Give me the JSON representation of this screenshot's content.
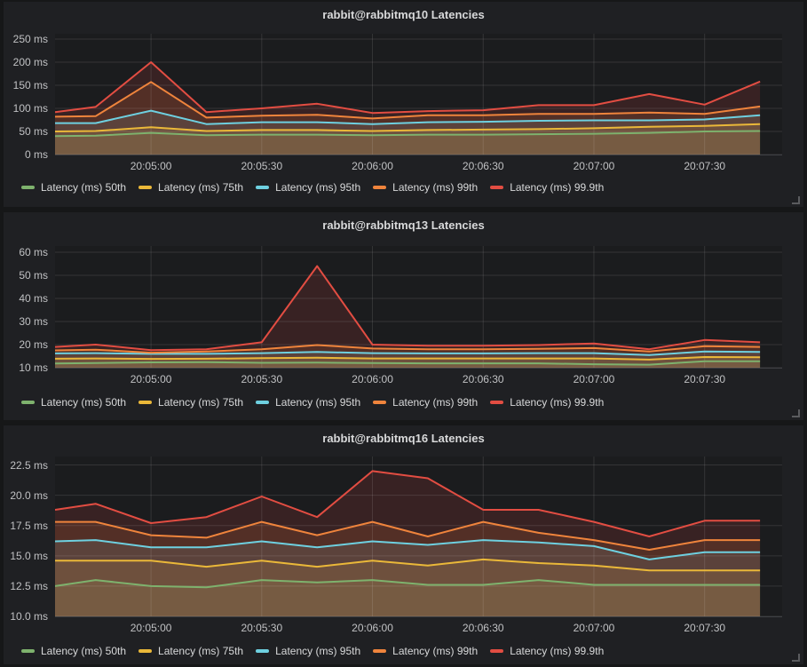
{
  "panels": [
    {
      "title": "rabbit@rabbitmq10 Latencies"
    },
    {
      "title": "rabbit@rabbitmq13 Latencies"
    },
    {
      "title": "rabbit@rabbitmq16 Latencies"
    }
  ],
  "legend_labels": [
    "Latency (ms) 50th",
    "Latency (ms) 75th",
    "Latency (ms) 95th",
    "Latency (ms) 99th",
    "Latency (ms) 99.9th"
  ],
  "palette": {
    "green": "#7eb26d",
    "yellow": "#eab839",
    "cyan": "#6ed0e0",
    "orange": "#ef843c",
    "red": "#e24d42"
  },
  "chart_data": [
    {
      "type": "area",
      "title": "rabbit@rabbitmq10 Latencies",
      "grid": true,
      "legend_position": "bottom",
      "xlim": [
        "20:04:34",
        "20:07:51"
      ],
      "xticks": [
        {
          "time": "20:05:00",
          "label": "20:05:00"
        },
        {
          "time": "20:05:30",
          "label": "20:05:30"
        },
        {
          "time": "20:06:00",
          "label": "20:06:00"
        },
        {
          "time": "20:06:30",
          "label": "20:06:30"
        },
        {
          "time": "20:07:00",
          "label": "20:07:00"
        },
        {
          "time": "20:07:30",
          "label": "20:07:30"
        }
      ],
      "ylim": [
        0,
        261.5
      ],
      "yticks": [
        {
          "value": 0,
          "label": "0 ms"
        },
        {
          "value": 50,
          "label": "50 ms"
        },
        {
          "value": 100,
          "label": "100 ms"
        },
        {
          "value": 150,
          "label": "150 ms"
        },
        {
          "value": 200,
          "label": "200 ms"
        },
        {
          "value": 250,
          "label": "250 ms"
        }
      ],
      "x_times": [
        "20:04:34",
        "20:04:45",
        "20:05:00",
        "20:05:15",
        "20:05:30",
        "20:05:45",
        "20:06:00",
        "20:06:15",
        "20:06:30",
        "20:06:45",
        "20:07:00",
        "20:07:15",
        "20:07:30",
        "20:07:45"
      ],
      "series": [
        {
          "name": "Latency (ms) 50th",
          "color": "#7eb26d",
          "values": [
            40,
            41,
            47,
            42,
            43,
            43,
            42,
            43,
            43,
            44,
            45,
            47,
            50,
            51
          ]
        },
        {
          "name": "Latency (ms) 75th",
          "color": "#eab839",
          "values": [
            50,
            51,
            59,
            51,
            53,
            53,
            51,
            53,
            54,
            55,
            57,
            60,
            62,
            66
          ]
        },
        {
          "name": "Latency (ms) 95th",
          "color": "#6ed0e0",
          "values": [
            68,
            68,
            95,
            66,
            70,
            70,
            66,
            70,
            71,
            73,
            74,
            74,
            76,
            85
          ]
        },
        {
          "name": "Latency (ms) 99th",
          "color": "#ef843c",
          "values": [
            82,
            83,
            157,
            80,
            84,
            86,
            78,
            85,
            85,
            88,
            88,
            91,
            88,
            104
          ]
        },
        {
          "name": "Latency (ms) 99.9th",
          "color": "#e24d42",
          "values": [
            92,
            103,
            200,
            92,
            100,
            110,
            90,
            94,
            96,
            107,
            107,
            131,
            108,
            158
          ]
        }
      ]
    },
    {
      "type": "area",
      "title": "rabbit@rabbitmq13 Latencies",
      "grid": true,
      "legend_position": "bottom",
      "xlim": [
        "20:04:34",
        "20:07:51"
      ],
      "xticks": [
        {
          "time": "20:05:00",
          "label": "20:05:00"
        },
        {
          "time": "20:05:30",
          "label": "20:05:30"
        },
        {
          "time": "20:06:00",
          "label": "20:06:00"
        },
        {
          "time": "20:06:30",
          "label": "20:06:30"
        },
        {
          "time": "20:07:00",
          "label": "20:07:00"
        },
        {
          "time": "20:07:30",
          "label": "20:07:30"
        }
      ],
      "ylim": [
        10,
        62.7
      ],
      "yticks": [
        {
          "value": 10,
          "label": "10 ms"
        },
        {
          "value": 20,
          "label": "20 ms"
        },
        {
          "value": 30,
          "label": "30 ms"
        },
        {
          "value": 40,
          "label": "40 ms"
        },
        {
          "value": 50,
          "label": "50 ms"
        },
        {
          "value": 60,
          "label": "60 ms"
        }
      ],
      "x_times": [
        "20:04:34",
        "20:04:45",
        "20:05:00",
        "20:05:15",
        "20:05:30",
        "20:05:45",
        "20:06:00",
        "20:06:15",
        "20:06:30",
        "20:06:45",
        "20:07:00",
        "20:07:15",
        "20:07:30",
        "20:07:45"
      ],
      "series": [
        {
          "name": "Latency (ms) 50th",
          "color": "#7eb26d",
          "values": [
            11.8,
            12.0,
            12.3,
            12.4,
            12.1,
            12.2,
            12.0,
            11.9,
            11.9,
            11.9,
            11.5,
            11.3,
            12.8,
            12.8
          ]
        },
        {
          "name": "Latency (ms) 75th",
          "color": "#eab839",
          "values": [
            13.9,
            14.0,
            13.8,
            13.9,
            14.1,
            14.3,
            14.0,
            14.0,
            14.0,
            14.0,
            14.0,
            13.5,
            14.6,
            14.5
          ]
        },
        {
          "name": "Latency (ms) 95th",
          "color": "#6ed0e0",
          "values": [
            16.2,
            16.3,
            16.0,
            16.0,
            16.3,
            16.8,
            16.3,
            16.2,
            16.2,
            16.3,
            16.3,
            15.5,
            17.0,
            16.8
          ]
        },
        {
          "name": "Latency (ms) 99th",
          "color": "#ef843c",
          "values": [
            17.5,
            17.8,
            16.5,
            17.0,
            18.0,
            19.8,
            18.3,
            18.0,
            18.0,
            18.2,
            18.5,
            17.0,
            19.3,
            19.0
          ]
        },
        {
          "name": "Latency (ms) 99.9th",
          "color": "#e24d42",
          "values": [
            19.0,
            20.0,
            17.6,
            18.0,
            21.0,
            54.0,
            20.0,
            19.5,
            19.5,
            19.8,
            20.5,
            18.0,
            22.0,
            21.0
          ]
        }
      ]
    },
    {
      "type": "area",
      "title": "rabbit@rabbitmq16 Latencies",
      "grid": true,
      "legend_position": "bottom",
      "xlim": [
        "20:04:34",
        "20:07:51"
      ],
      "xticks": [
        {
          "time": "20:05:00",
          "label": "20:05:00"
        },
        {
          "time": "20:05:30",
          "label": "20:05:30"
        },
        {
          "time": "20:06:00",
          "label": "20:06:00"
        },
        {
          "time": "20:06:30",
          "label": "20:06:30"
        },
        {
          "time": "20:07:00",
          "label": "20:07:00"
        },
        {
          "time": "20:07:30",
          "label": "20:07:30"
        }
      ],
      "ylim": [
        10,
        23.2
      ],
      "yticks": [
        {
          "value": 10,
          "label": "10.0 ms"
        },
        {
          "value": 12.5,
          "label": "12.5 ms"
        },
        {
          "value": 15,
          "label": "15.0 ms"
        },
        {
          "value": 17.5,
          "label": "17.5 ms"
        },
        {
          "value": 20,
          "label": "20.0 ms"
        },
        {
          "value": 22.5,
          "label": "22.5 ms"
        }
      ],
      "x_times": [
        "20:04:34",
        "20:04:45",
        "20:05:00",
        "20:05:15",
        "20:05:30",
        "20:05:45",
        "20:06:00",
        "20:06:15",
        "20:06:30",
        "20:06:45",
        "20:07:00",
        "20:07:15",
        "20:07:30",
        "20:07:45"
      ],
      "series": [
        {
          "name": "Latency (ms) 50th",
          "color": "#7eb26d",
          "values": [
            12.5,
            13.0,
            12.5,
            12.4,
            13.0,
            12.8,
            13.0,
            12.6,
            12.6,
            13.0,
            12.6,
            12.6,
            12.6,
            12.6
          ]
        },
        {
          "name": "Latency (ms) 75th",
          "color": "#eab839",
          "values": [
            14.6,
            14.6,
            14.6,
            14.1,
            14.6,
            14.1,
            14.6,
            14.2,
            14.7,
            14.4,
            14.2,
            13.8,
            13.8,
            13.8
          ]
        },
        {
          "name": "Latency (ms) 95th",
          "color": "#6ed0e0",
          "values": [
            16.2,
            16.3,
            15.7,
            15.7,
            16.2,
            15.7,
            16.2,
            15.9,
            16.3,
            16.1,
            15.8,
            14.7,
            15.3,
            15.3
          ]
        },
        {
          "name": "Latency (ms) 99th",
          "color": "#ef843c",
          "values": [
            17.8,
            17.8,
            16.7,
            16.5,
            17.8,
            16.7,
            17.8,
            16.6,
            17.8,
            16.9,
            16.3,
            15.5,
            16.3,
            16.3
          ]
        },
        {
          "name": "Latency (ms) 99.9th",
          "color": "#e24d42",
          "values": [
            18.8,
            19.3,
            17.7,
            18.2,
            19.9,
            18.2,
            22.0,
            21.4,
            18.8,
            18.8,
            17.8,
            16.6,
            17.9,
            17.9
          ]
        }
      ]
    }
  ]
}
